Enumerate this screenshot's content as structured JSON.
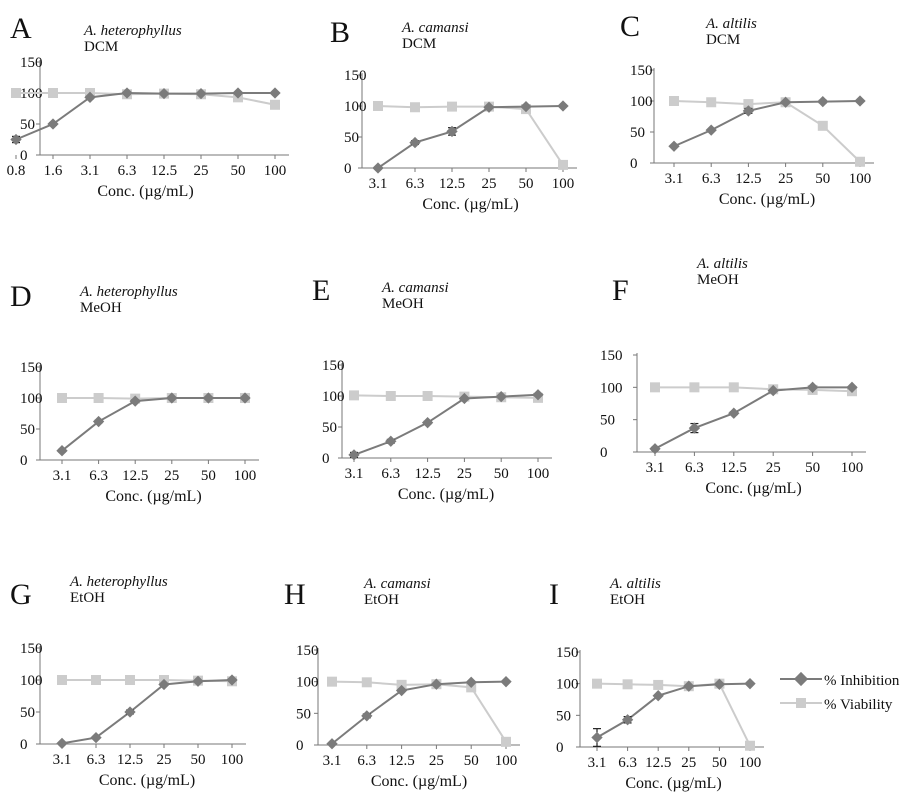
{
  "legend": {
    "inhibition_label": "% Inhibition",
    "viability_label": "% Viability"
  },
  "colors": {
    "inhibition": "#7b7b7b",
    "viability": "#cccccc",
    "axis": "#777777"
  },
  "chart_data": [
    {
      "panel": "A",
      "species": "A. heterophyllus",
      "solvent": "DCM",
      "type": "line",
      "categories": [
        "0.8",
        "1.6",
        "3.1",
        "6.3",
        "12.5",
        "25",
        "50",
        "100"
      ],
      "series": [
        {
          "name": "% Inhibition",
          "values": [
            25,
            50,
            93,
            100,
            99,
            99,
            100,
            100
          ],
          "errors": [
            5,
            2,
            2,
            1,
            1,
            1,
            1,
            1
          ]
        },
        {
          "name": "% Viability",
          "values": [
            100,
            100,
            100,
            98,
            99,
            98,
            93,
            81
          ]
        }
      ],
      "yticks": [
        "0",
        "50",
        "100",
        "150"
      ],
      "ylim": [
        0,
        150
      ],
      "xlabel": "Conc. (µg/mL)"
    },
    {
      "panel": "B",
      "species": "A. camansi",
      "solvent": "DCM",
      "type": "line",
      "categories": [
        "3.1",
        "6.3",
        "12.5",
        "25",
        "50",
        "100"
      ],
      "series": [
        {
          "name": "% Inhibition",
          "values": [
            0,
            41,
            59,
            98,
            99,
            100
          ],
          "errors": [
            0,
            3,
            6,
            1,
            1,
            0
          ]
        },
        {
          "name": "% Viability",
          "values": [
            100,
            98,
            99,
            99,
            95,
            5
          ]
        }
      ],
      "yticks": [
        "0",
        "50",
        "100",
        "150"
      ],
      "ylim": [
        0,
        150
      ],
      "xlabel": "Conc. (µg/mL)"
    },
    {
      "panel": "C",
      "species": "A. altilis",
      "solvent": "DCM",
      "type": "line",
      "categories": [
        "3.1",
        "6.3",
        "12.5",
        "25",
        "50",
        "100"
      ],
      "series": [
        {
          "name": "% Inhibition",
          "values": [
            27,
            53,
            84,
            98,
            99,
            100
          ],
          "errors": [
            1,
            1,
            4,
            1,
            2,
            0
          ]
        },
        {
          "name": "% Viability",
          "values": [
            100,
            98,
            95,
            98,
            60,
            2
          ]
        }
      ],
      "yticks": [
        "0",
        "50",
        "100",
        "150"
      ],
      "ylim": [
        0,
        150
      ],
      "xlabel": "Conc. (µg/mL)"
    },
    {
      "panel": "D",
      "species": "A. heterophyllus",
      "solvent": "MeOH",
      "type": "line",
      "categories": [
        "3.1",
        "6.3",
        "12.5",
        "25",
        "50",
        "100"
      ],
      "series": [
        {
          "name": "% Inhibition",
          "values": [
            15,
            62,
            95,
            100,
            100,
            100
          ],
          "errors": [
            2,
            2,
            2,
            1,
            0,
            0
          ]
        },
        {
          "name": "% Viability",
          "values": [
            100,
            100,
            99,
            100,
            100,
            100
          ]
        }
      ],
      "yticks": [
        "0",
        "50",
        "100",
        "150"
      ],
      "ylim": [
        0,
        150
      ],
      "xlabel": "Conc. (µg/mL)"
    },
    {
      "panel": "E",
      "species": "A. camansi",
      "solvent": "MeOH",
      "type": "line",
      "categories": [
        "3.1",
        "6.3",
        "12.5",
        "25",
        "50",
        "100"
      ],
      "series": [
        {
          "name": "% Inhibition",
          "values": [
            5,
            27,
            57,
            96,
            99,
            102
          ],
          "errors": [
            4,
            3,
            2,
            1,
            1,
            0
          ]
        },
        {
          "name": "% Viability",
          "values": [
            101,
            100,
            100,
            99,
            98,
            97
          ]
        }
      ],
      "yticks": [
        "0",
        "50",
        "100",
        "150"
      ],
      "ylim": [
        0,
        150
      ],
      "xlabel": "Conc. (µg/mL)"
    },
    {
      "panel": "F",
      "species": "A. altilis",
      "solvent": "MeOH",
      "type": "line",
      "categories": [
        "3.1",
        "6.3",
        "12.5",
        "25",
        "50",
        "100"
      ],
      "series": [
        {
          "name": "% Inhibition",
          "values": [
            5,
            37,
            60,
            95,
            100,
            100
          ],
          "errors": [
            2,
            7,
            2,
            1,
            1,
            0
          ]
        },
        {
          "name": "% Viability",
          "values": [
            100,
            100,
            100,
            97,
            96,
            94
          ]
        }
      ],
      "yticks": [
        "0",
        "50",
        "100",
        "150"
      ],
      "ylim": [
        0,
        150
      ],
      "xlabel": "Conc. (µg/mL)"
    },
    {
      "panel": "G",
      "species": "A. heterophyllus",
      "solvent": "EtOH",
      "type": "line",
      "categories": [
        "3.1",
        "6.3",
        "12.5",
        "25",
        "50",
        "100"
      ],
      "series": [
        {
          "name": "% Inhibition",
          "values": [
            1,
            10,
            50,
            93,
            98,
            100
          ],
          "errors": [
            1,
            1,
            3,
            1,
            1,
            0
          ]
        },
        {
          "name": "% Viability",
          "values": [
            100,
            100,
            100,
            100,
            99,
            98
          ]
        }
      ],
      "yticks": [
        "0",
        "50",
        "100",
        "150"
      ],
      "ylim": [
        0,
        150
      ],
      "xlabel": "Conc. (µg/mL)"
    },
    {
      "panel": "H",
      "species": "A. camansi",
      "solvent": "EtOH",
      "type": "line",
      "categories": [
        "3.1",
        "6.3",
        "12.5",
        "25",
        "50",
        "100"
      ],
      "series": [
        {
          "name": "% Inhibition",
          "values": [
            2,
            46,
            86,
            96,
            99,
            100
          ],
          "errors": [
            0,
            3,
            1,
            1,
            1,
            0
          ]
        },
        {
          "name": "% Viability",
          "values": [
            100,
            99,
            95,
            96,
            91,
            5
          ]
        }
      ],
      "yticks": [
        "0",
        "50",
        "100",
        "150"
      ],
      "ylim": [
        0,
        150
      ],
      "xlabel": "Conc. (µg/mL)"
    },
    {
      "panel": "I",
      "species": "A. altilis",
      "solvent": "EtOH",
      "type": "line",
      "categories": [
        "3.1",
        "6.3",
        "12.5",
        "25",
        "50",
        "100"
      ],
      "series": [
        {
          "name": "% Inhibition",
          "values": [
            15,
            43,
            81,
            96,
            99,
            100
          ],
          "errors": [
            14,
            5,
            1,
            1,
            1,
            0
          ]
        },
        {
          "name": "% Viability",
          "values": [
            100,
            99,
            98,
            96,
            100,
            2
          ]
        }
      ],
      "yticks": [
        "0",
        "50",
        "100",
        "150"
      ],
      "ylim": [
        0,
        150
      ],
      "xlabel": "Conc. (µg/mL)"
    }
  ]
}
